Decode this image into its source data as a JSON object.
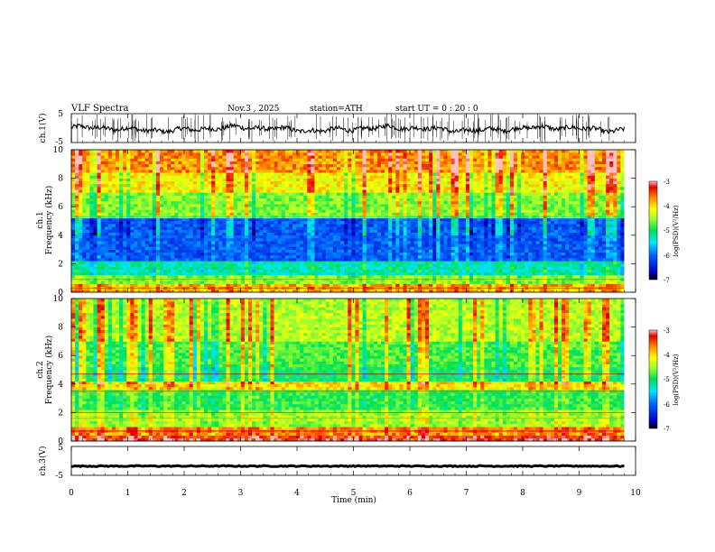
{
  "header": {
    "title": "VLF  Spectra",
    "date": "Nov.3  , 2025",
    "station": "station=ATH",
    "start_ut": "start  UT  =    0  : 20 : 0"
  },
  "chart_data": {
    "type": "heatmap",
    "x": {
      "label": "Time  (min)",
      "range": [
        0,
        10
      ],
      "ticks": [
        "0",
        "1",
        "2",
        "3",
        "4",
        "5",
        "6",
        "7",
        "8",
        "9",
        "10"
      ]
    },
    "panels": [
      {
        "id": "ch1-waveform",
        "type": "line",
        "ylabel": "ch.1(V)",
        "ylim": [
          -5,
          5
        ],
        "yticks": [
          "5",
          "-5"
        ]
      },
      {
        "id": "ch1-spectrogram",
        "type": "heatmap",
        "ylabel_channel": "ch.1",
        "ylabel": "Frequency  (kHz)",
        "ylim": [
          0,
          10
        ],
        "yticks": [
          "0",
          "2",
          "4",
          "6",
          "8",
          "10"
        ],
        "colorbar": {
          "label": "log(PSD)(V²/Hz)",
          "range": [
            -7,
            -3
          ],
          "ticks": [
            "-3",
            "-4",
            "-5",
            "-6",
            "-7"
          ]
        }
      },
      {
        "id": "ch2-spectrogram",
        "type": "heatmap",
        "ylabel_channel": "ch.2",
        "ylabel": "Frequency  (kHz)",
        "ylim": [
          0,
          10
        ],
        "yticks": [
          "0",
          "2",
          "4",
          "6",
          "8",
          "10"
        ],
        "colorbar": {
          "label": "log(PSD)(V²/Hz)",
          "range": [
            -7,
            -3
          ],
          "ticks": [
            "-3",
            "-4",
            "-5",
            "-6",
            "-7"
          ]
        }
      },
      {
        "id": "ch3-waveform",
        "type": "line",
        "ylabel": "ch.3(V)",
        "ylim": [
          -5,
          5
        ],
        "yticks": [
          "5",
          "-5"
        ]
      }
    ],
    "data_end_min": 9.8
  }
}
